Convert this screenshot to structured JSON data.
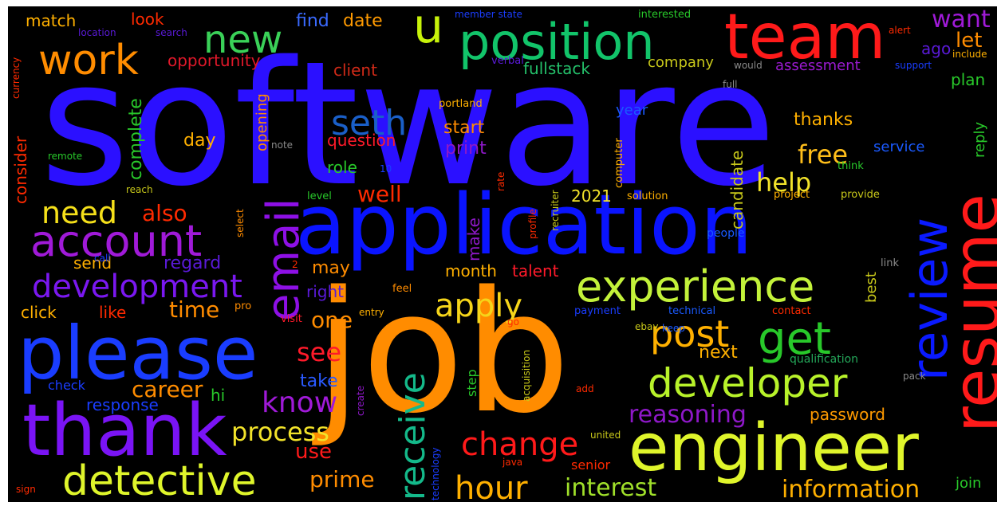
{
  "words": [
    {
      "text": "software",
      "color": "#2b10ff"
    },
    {
      "text": "job",
      "color": "#ff8c00"
    },
    {
      "text": "application",
      "color": "#0a14ff"
    },
    {
      "text": "please",
      "color": "#1a3dff"
    },
    {
      "text": "thank",
      "color": "#7a14f5"
    },
    {
      "text": "engineer",
      "color": "#dff52b"
    },
    {
      "text": "team",
      "color": "#ff1a1a"
    },
    {
      "text": "position",
      "color": "#12c46a"
    },
    {
      "text": "resume",
      "color": "#ff1a1a"
    },
    {
      "text": "review",
      "color": "#0a1aff"
    },
    {
      "text": "experience",
      "color": "#c3f23a"
    },
    {
      "text": "email",
      "color": "#8e10e6"
    },
    {
      "text": "account",
      "color": "#a01ad8"
    },
    {
      "text": "development",
      "color": "#7a18f0"
    },
    {
      "text": "detective",
      "color": "#dff52b"
    },
    {
      "text": "developer",
      "color": "#b8f22a"
    },
    {
      "text": "work",
      "color": "#ff8c00"
    },
    {
      "text": "new",
      "color": "#3ad158"
    },
    {
      "text": "u",
      "color": "#c7f20a"
    },
    {
      "text": "get",
      "color": "#28c82a"
    },
    {
      "text": "post",
      "color": "#ffb000"
    },
    {
      "text": "receive",
      "color": "#14b98a"
    },
    {
      "text": "change",
      "color": "#ff1a1a"
    },
    {
      "text": "apply",
      "color": "#f5d51a"
    },
    {
      "text": "seth",
      "color": "#1a5fc8"
    },
    {
      "text": "need",
      "color": "#f5e01a"
    },
    {
      "text": "hour",
      "color": "#ffb000"
    },
    {
      "text": "know",
      "color": "#a01ad8"
    },
    {
      "text": "interest",
      "color": "#a0e02a"
    },
    {
      "text": "information",
      "color": "#ffb000"
    },
    {
      "text": "process",
      "color": "#f2e32a"
    },
    {
      "text": "reasoning",
      "color": "#8e18c8"
    },
    {
      "text": "help",
      "color": "#f2e32a"
    },
    {
      "text": "free",
      "color": "#ffbe1a"
    },
    {
      "text": "career",
      "color": "#ff8c00"
    },
    {
      "text": "also",
      "color": "#ff2a00"
    },
    {
      "text": "want",
      "color": "#a01ad8"
    },
    {
      "text": "prime",
      "color": "#ff8c00"
    },
    {
      "text": "see",
      "color": "#ff1a2a"
    },
    {
      "text": "time",
      "color": "#ff8c00"
    },
    {
      "text": "well",
      "color": "#ff2a00"
    },
    {
      "text": "let",
      "color": "#ff8c00"
    },
    {
      "text": "ago",
      "color": "#5a1ad8"
    },
    {
      "text": "fullstack",
      "color": "#24c06a"
    },
    {
      "text": "one",
      "color": "#ff8c00"
    },
    {
      "text": "use",
      "color": "#ff1a1a"
    },
    {
      "text": "take",
      "color": "#2a5aff"
    },
    {
      "text": "find",
      "color": "#3a6aff"
    },
    {
      "text": "date",
      "color": "#ff9a00"
    },
    {
      "text": "match",
      "color": "#ffb000"
    },
    {
      "text": "look",
      "color": "#ff2a00"
    },
    {
      "text": "opportunity",
      "color": "#e0182a"
    },
    {
      "text": "client",
      "color": "#d02a18"
    },
    {
      "text": "company",
      "color": "#c8c81a"
    },
    {
      "text": "assessment",
      "color": "#9a1ad0"
    },
    {
      "text": "plan",
      "color": "#28c82a"
    },
    {
      "text": "thanks",
      "color": "#ffb000"
    },
    {
      "text": "service",
      "color": "#1a5aff"
    },
    {
      "text": "reply",
      "color": "#28c82a"
    },
    {
      "text": "year",
      "color": "#1a5aff"
    },
    {
      "text": "start",
      "color": "#ff8c00"
    },
    {
      "text": "question",
      "color": "#ff1a2a"
    },
    {
      "text": "print",
      "color": "#8e18c8"
    },
    {
      "text": "role",
      "color": "#28c82a"
    },
    {
      "text": "day",
      "color": "#ffb000"
    },
    {
      "text": "complete",
      "color": "#28c82a"
    },
    {
      "text": "opening",
      "color": "#ff8c00"
    },
    {
      "text": "candidate",
      "color": "#c8c81a"
    },
    {
      "text": "best",
      "color": "#c8c81a"
    },
    {
      "text": "next",
      "color": "#ffb000"
    },
    {
      "text": "password",
      "color": "#ff9a00"
    },
    {
      "text": "2021",
      "color": "#f2e32a"
    },
    {
      "text": "make",
      "color": "#8e18c8"
    },
    {
      "text": "month",
      "color": "#ffb000"
    },
    {
      "text": "talent",
      "color": "#ff1a2a"
    },
    {
      "text": "regard",
      "color": "#5a1ad8"
    },
    {
      "text": "send",
      "color": "#ffb000"
    },
    {
      "text": "right",
      "color": "#5a1ad8"
    },
    {
      "text": "may",
      "color": "#ff8c00"
    },
    {
      "text": "click",
      "color": "#ffb000"
    },
    {
      "text": "like",
      "color": "#ff2a00"
    },
    {
      "text": "hi",
      "color": "#28c82a"
    },
    {
      "text": "response",
      "color": "#1a3dff"
    },
    {
      "text": "check",
      "color": "#1a3dff"
    },
    {
      "text": "consider",
      "color": "#ff2a00"
    },
    {
      "text": "senior",
      "color": "#ff2a00"
    },
    {
      "text": "join",
      "color": "#28c82a"
    },
    {
      "text": "step",
      "color": "#28c82a"
    },
    {
      "text": "qualification",
      "color": "#24a85a"
    },
    {
      "text": "link",
      "color": "#8a8a8a"
    },
    {
      "text": "people",
      "color": "#1a5aff"
    },
    {
      "text": "solution",
      "color": "#ffb000"
    },
    {
      "text": "project",
      "color": "#ffb000"
    },
    {
      "text": "provide",
      "color": "#c8c81a"
    },
    {
      "text": "level",
      "color": "#28c82a"
    },
    {
      "text": "think",
      "color": "#28c82a"
    },
    {
      "text": "computer",
      "color": "#ffb000"
    },
    {
      "text": "technical",
      "color": "#1a5aff"
    },
    {
      "text": "payment",
      "color": "#1a3dff"
    },
    {
      "text": "contact",
      "color": "#ff2a00"
    },
    {
      "text": "pack",
      "color": "#8a8a8a"
    },
    {
      "text": "feel",
      "color": "#ff8c00"
    },
    {
      "text": "entry",
      "color": "#ffb000"
    },
    {
      "text": "visit",
      "color": "#ff1a2a"
    },
    {
      "text": "keep",
      "color": "#1a5aff"
    },
    {
      "text": "ebay",
      "color": "#c8c81a"
    },
    {
      "text": "pro",
      "color": "#ff8c00"
    },
    {
      "text": "call",
      "color": "#1a3dff"
    },
    {
      "text": "select",
      "color": "#ff8c00"
    },
    {
      "text": "reach",
      "color": "#c8c81a"
    },
    {
      "text": "remote",
      "color": "#28c82a"
    },
    {
      "text": "note",
      "color": "#8a8a8a"
    },
    {
      "text": "10",
      "color": "#1a3dff"
    },
    {
      "text": "portland",
      "color": "#ffb000"
    },
    {
      "text": "verbal",
      "color": "#5a1ad8"
    },
    {
      "text": "member state",
      "color": "#1a3dff"
    },
    {
      "text": "interested",
      "color": "#28c82a"
    },
    {
      "text": "location",
      "color": "#5a1ad8"
    },
    {
      "text": "search",
      "color": "#5a1ad8"
    },
    {
      "text": "currency",
      "color": "#ff2a00"
    },
    {
      "text": "would",
      "color": "#8a8a8a"
    },
    {
      "text": "full",
      "color": "#8a8a8a"
    },
    {
      "text": "alert",
      "color": "#ff2a00"
    },
    {
      "text": "include",
      "color": "#ffb000"
    },
    {
      "text": "support",
      "color": "#1a3dff"
    },
    {
      "text": "recruiter",
      "color": "#c8c81a"
    },
    {
      "text": "profile",
      "color": "#ff2a00"
    },
    {
      "text": "rate",
      "color": "#ff2a00"
    },
    {
      "text": "acquisition",
      "color": "#c8c81a"
    },
    {
      "text": "create",
      "color": "#8e18c8"
    },
    {
      "text": "technology",
      "color": "#1a3dff"
    },
    {
      "text": "add",
      "color": "#ff2a00"
    },
    {
      "text": "united",
      "color": "#c8c81a"
    },
    {
      "text": "java",
      "color": "#ff2a00"
    },
    {
      "text": "sign",
      "color": "#ff2a00"
    },
    {
      "text": "go",
      "color": "#ff2a00"
    },
    {
      "text": "2",
      "color": "#ff2a00"
    }
  ]
}
